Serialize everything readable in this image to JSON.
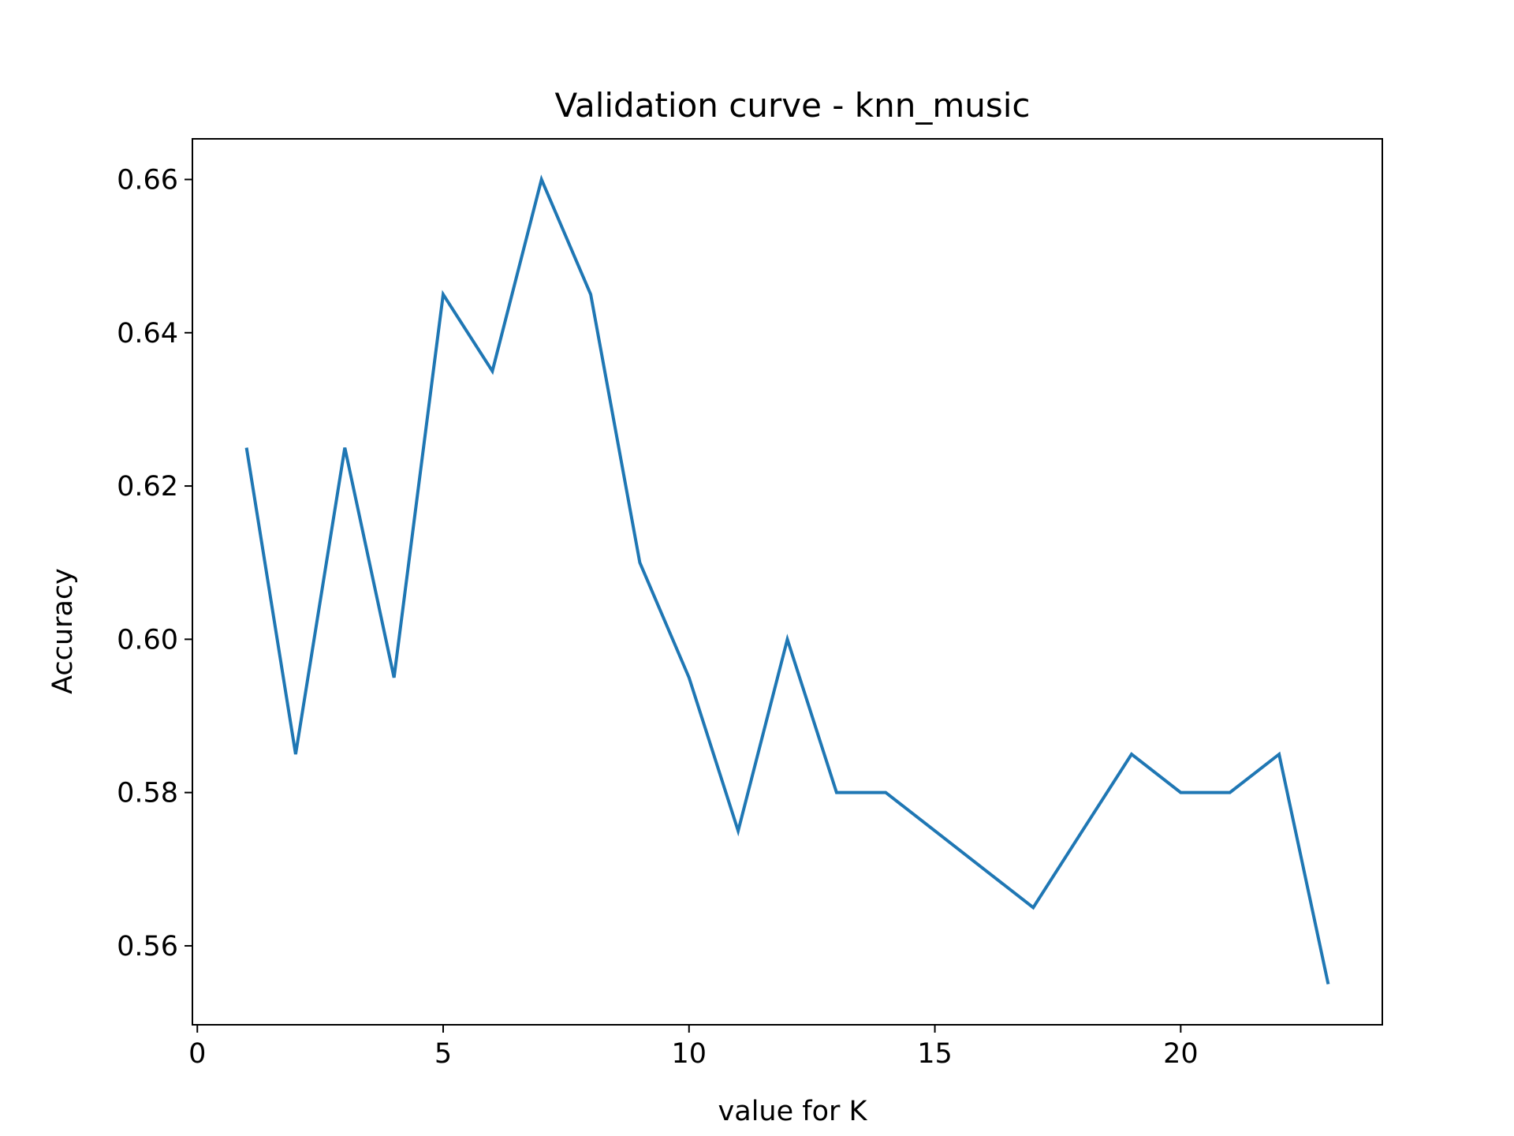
{
  "chart_data": {
    "type": "line",
    "title": "Validation curve - knn_music",
    "xlabel": "value for K",
    "ylabel": "Accuracy",
    "xlim": [
      -0.1,
      24.1
    ],
    "ylim": [
      0.5497,
      0.6653
    ],
    "xticks": [
      0,
      5,
      10,
      15,
      20
    ],
    "xtick_labels": [
      "0",
      "5",
      "10",
      "15",
      "20"
    ],
    "yticks": [
      0.56,
      0.58,
      0.6,
      0.62,
      0.64,
      0.66
    ],
    "ytick_labels": [
      "0.56",
      "0.58",
      "0.60",
      "0.62",
      "0.64",
      "0.66"
    ],
    "grid": false,
    "series": [
      {
        "color": "#1f77b4",
        "x": [
          1,
          2,
          3,
          4,
          5,
          6,
          7,
          8,
          9,
          10,
          11,
          12,
          13,
          14,
          15,
          16,
          17,
          18,
          19,
          20,
          21,
          22,
          23
        ],
        "values": [
          0.625,
          0.585,
          0.625,
          0.595,
          0.645,
          0.635,
          0.66,
          0.645,
          0.61,
          0.595,
          0.575,
          0.6,
          0.58,
          0.58,
          0.575,
          0.57,
          0.565,
          0.575,
          0.585,
          0.58,
          0.58,
          0.585,
          0.555
        ]
      }
    ]
  }
}
